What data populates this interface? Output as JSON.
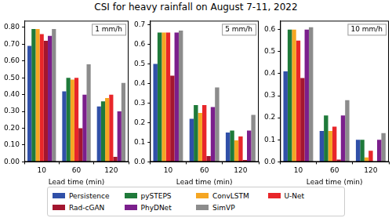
{
  "title": "CSI for heavy rainfall on August 7-11, 2022",
  "legend": "bottom",
  "chart_data": [
    {
      "type": "bar",
      "annotation": "1 mm/h",
      "x_label": "Lead time (min)",
      "categories": [
        "10",
        "60",
        "120"
      ],
      "series": [
        {
          "name": "Persistence",
          "color": "#3050a8",
          "values": [
            0.69,
            0.42,
            0.33
          ]
        },
        {
          "name": "pySTEPS",
          "color": "#1f7a3a",
          "values": [
            0.79,
            0.5,
            0.36
          ]
        },
        {
          "name": "ConvLSTM",
          "color": "#f5a623",
          "values": [
            0.79,
            0.49,
            0.38
          ]
        },
        {
          "name": "U-Net",
          "color": "#e8262a",
          "values": [
            0.76,
            0.5,
            0.4
          ]
        },
        {
          "name": "Rad-cGAN",
          "color": "#a3162f",
          "values": [
            0.72,
            0.2,
            0.03
          ]
        },
        {
          "name": "PhyDNet",
          "color": "#7b1f8c",
          "values": [
            0.75,
            0.4,
            0.3
          ]
        },
        {
          "name": "SimVP",
          "color": "#8c8c8c",
          "values": [
            0.79,
            0.58,
            0.47
          ]
        }
      ],
      "ylim": [
        0,
        0.84
      ],
      "yticks": [
        {
          "value": 0,
          "label": "0.00"
        },
        {
          "value": 0.1,
          "label": "0.10"
        },
        {
          "value": 0.2,
          "label": "0.20"
        },
        {
          "value": 0.3,
          "label": "0.30"
        },
        {
          "value": 0.4,
          "label": "0.40"
        },
        {
          "value": 0.5,
          "label": "0.50"
        },
        {
          "value": 0.6,
          "label": "0.60"
        },
        {
          "value": 0.7,
          "label": "0.70"
        },
        {
          "value": 0.8,
          "label": "0.80"
        }
      ],
      "grid": false
    },
    {
      "type": "bar",
      "annotation": "5 mm/h",
      "x_label": "Lead time (min)",
      "categories": [
        "10",
        "60",
        "120"
      ],
      "series": [
        {
          "name": "Persistence",
          "color": "#3050a8",
          "values": [
            0.5,
            0.22,
            0.15
          ]
        },
        {
          "name": "pySTEPS",
          "color": "#1f7a3a",
          "values": [
            0.66,
            0.29,
            0.16
          ]
        },
        {
          "name": "ConvLSTM",
          "color": "#f5a623",
          "values": [
            0.66,
            0.25,
            0.11
          ]
        },
        {
          "name": "U-Net",
          "color": "#e8262a",
          "values": [
            0.66,
            0.29,
            0.13
          ]
        },
        {
          "name": "Rad-cGAN",
          "color": "#a3162f",
          "values": [
            0.44,
            0.03,
            0.01
          ]
        },
        {
          "name": "PhyDNet",
          "color": "#7b1f8c",
          "values": [
            0.66,
            0.28,
            0.16
          ]
        },
        {
          "name": "SimVP",
          "color": "#8c8c8c",
          "values": [
            0.67,
            0.38,
            0.24
          ]
        }
      ],
      "ylim": [
        0,
        0.72
      ],
      "yticks": [
        {
          "value": 0,
          "label": "0.0"
        },
        {
          "value": 0.1,
          "label": "0.1"
        },
        {
          "value": 0.2,
          "label": "0.2"
        },
        {
          "value": 0.3,
          "label": "0.3"
        },
        {
          "value": 0.4,
          "label": "0.4"
        },
        {
          "value": 0.5,
          "label": "0.5"
        },
        {
          "value": 0.6,
          "label": "0.6"
        },
        {
          "value": 0.7,
          "label": "0.7"
        }
      ],
      "grid": false
    },
    {
      "type": "bar",
      "annotation": "10 mm/h",
      "x_label": "Lead time (min)",
      "categories": [
        "10",
        "60",
        "120"
      ],
      "series": [
        {
          "name": "Persistence",
          "color": "#3050a8",
          "values": [
            0.41,
            0.14,
            0.1
          ]
        },
        {
          "name": "pySTEPS",
          "color": "#1f7a3a",
          "values": [
            0.6,
            0.21,
            0.1
          ]
        },
        {
          "name": "ConvLSTM",
          "color": "#f5a623",
          "values": [
            0.6,
            0.14,
            0.02
          ]
        },
        {
          "name": "U-Net",
          "color": "#e8262a",
          "values": [
            0.55,
            0.16,
            0.05
          ]
        },
        {
          "name": "Rad-cGAN",
          "color": "#a3162f",
          "values": [
            0.38,
            0.01,
            0.0
          ]
        },
        {
          "name": "PhyDNet",
          "color": "#7b1f8c",
          "values": [
            0.6,
            0.21,
            0.1
          ]
        },
        {
          "name": "SimVP",
          "color": "#8c8c8c",
          "values": [
            0.61,
            0.28,
            0.13
          ]
        }
      ],
      "ylim": [
        0,
        0.64
      ],
      "yticks": [
        {
          "value": 0,
          "label": "0.0"
        },
        {
          "value": 0.1,
          "label": "0.1"
        },
        {
          "value": 0.2,
          "label": "0.2"
        },
        {
          "value": 0.3,
          "label": "0.3"
        },
        {
          "value": 0.4,
          "label": "0.4"
        },
        {
          "value": 0.5,
          "label": "0.5"
        },
        {
          "value": 0.6,
          "label": "0.6"
        }
      ],
      "grid": false
    }
  ]
}
